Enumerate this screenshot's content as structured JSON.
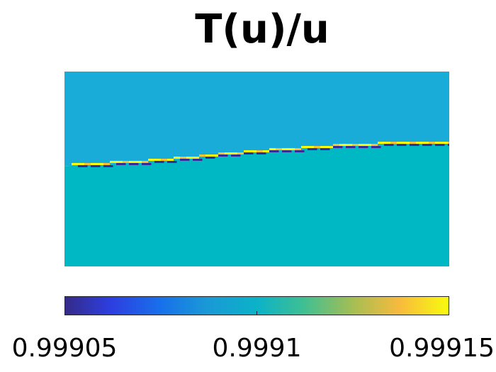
{
  "chart_data": {
    "type": "heatmap",
    "title": "T(u)/u",
    "xlabel": "",
    "ylabel": "",
    "grid": false,
    "colors": {
      "upper_region": "#1aacd8",
      "lower_region": "#00b8c4"
    },
    "colorbar": {
      "placement": "bottom",
      "min": 0.99905,
      "max": 0.99915,
      "ticks": [
        0.99905,
        0.9991,
        0.99915
      ],
      "tick_labels": [
        "0.99905",
        "0.9991",
        "0.99915"
      ],
      "colormap": "parula"
    },
    "regions": [
      {
        "region": "upper",
        "value": 0.99909
      },
      {
        "region": "lower",
        "value": 0.999102
      }
    ],
    "interface_line": {
      "x": [
        0,
        0.1,
        0.2,
        0.3,
        0.4,
        0.5,
        0.6,
        0.7,
        0.8,
        0.9,
        1.0
      ],
      "y": [
        0.485,
        0.476,
        0.465,
        0.449,
        0.428,
        0.412,
        0.398,
        0.386,
        0.377,
        0.371,
        0.37
      ],
      "upper_edge_value": 0.99915,
      "lower_edge_value": 0.99905
    }
  }
}
